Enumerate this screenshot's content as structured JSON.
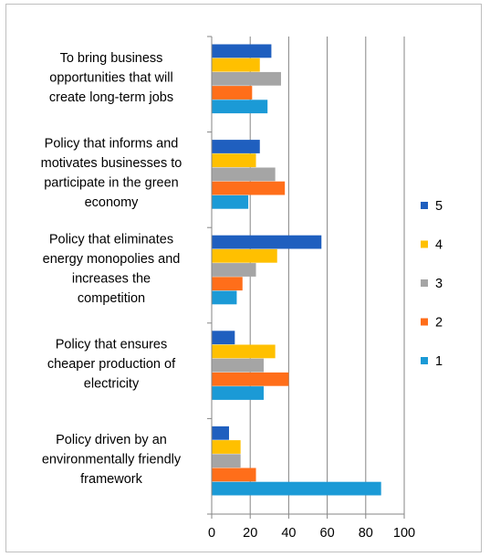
{
  "chart_data": {
    "type": "bar",
    "orientation": "horizontal",
    "categories": [
      [
        "To bring business",
        "opportunities that will",
        "create long-term jobs"
      ],
      [
        "Policy that informs and",
        "motivates businesses to",
        "participate in the green",
        "economy"
      ],
      [
        "Policy that eliminates",
        "energy monopolies and",
        "increases the",
        "competition"
      ],
      [
        "Policy that ensures",
        "cheaper  production of",
        "electricity"
      ],
      [
        "Policy driven by an",
        "environmentally friendly",
        "framework"
      ]
    ],
    "series": [
      {
        "name": "5",
        "color": "#1f5fbf",
        "values": [
          31,
          25,
          57,
          12,
          9
        ]
      },
      {
        "name": "4",
        "color": "#ffc000",
        "values": [
          25,
          23,
          34,
          33,
          15
        ]
      },
      {
        "name": "3",
        "color": "#a5a5a5",
        "values": [
          36,
          33,
          23,
          27,
          15
        ]
      },
      {
        "name": "2",
        "color": "#ff6e1a",
        "values": [
          21,
          38,
          16,
          40,
          23
        ]
      },
      {
        "name": "1",
        "color": "#1b9ad6",
        "values": [
          29,
          19,
          13,
          27,
          88
        ]
      }
    ],
    "xlim": [
      0,
      100
    ],
    "xticks": [
      "0",
      "20",
      "40",
      "60",
      "80",
      "100"
    ],
    "grid": "vertical",
    "legend": "right",
    "title": "",
    "xlabel": "",
    "ylabel": ""
  }
}
